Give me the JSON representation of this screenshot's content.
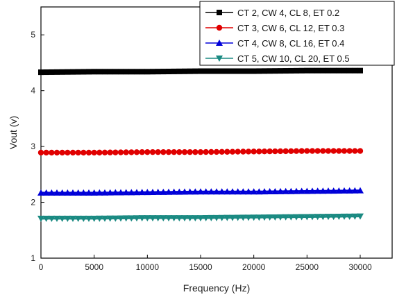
{
  "chart_data": {
    "type": "line",
    "title": "",
    "xlabel": "Frequency (Hz)",
    "ylabel": "Vout (v)",
    "xlim": [
      0,
      33000
    ],
    "ylim": [
      1,
      5.5
    ],
    "xticks": [
      0,
      5000,
      10000,
      15000,
      20000,
      25000,
      30000
    ],
    "yticks": [
      1,
      2,
      3,
      4,
      5
    ],
    "grid": false,
    "legend_position": "top-right",
    "series": [
      {
        "name": "CT 2, CW 4, CL 8, ET 0.2",
        "color": "#000000",
        "marker": "square",
        "x": [
          0,
          5000,
          10000,
          15000,
          20000,
          25000,
          30000
        ],
        "y": [
          4.33,
          4.34,
          4.34,
          4.35,
          4.35,
          4.36,
          4.36
        ]
      },
      {
        "name": "CT 3, CW 6, CL 12, ET 0.3",
        "color": "#e00000",
        "marker": "circle",
        "x": [
          0,
          5000,
          10000,
          15000,
          20000,
          25000,
          30000
        ],
        "y": [
          2.89,
          2.89,
          2.9,
          2.9,
          2.91,
          2.92,
          2.92
        ]
      },
      {
        "name": "CT 4, CW 8, CL 16, ET 0.4",
        "color": "#0000d8",
        "marker": "triangle-up",
        "x": [
          0,
          5000,
          10000,
          15000,
          20000,
          25000,
          30000
        ],
        "y": [
          2.17,
          2.17,
          2.18,
          2.19,
          2.19,
          2.2,
          2.21
        ]
      },
      {
        "name": "CT 5, CW 10, CL 20, ET 0.5",
        "color": "#1a8a82",
        "marker": "triangle-down",
        "x": [
          0,
          5000,
          10000,
          15000,
          20000,
          25000,
          30000
        ],
        "y": [
          1.71,
          1.71,
          1.72,
          1.72,
          1.73,
          1.74,
          1.75
        ]
      }
    ]
  }
}
